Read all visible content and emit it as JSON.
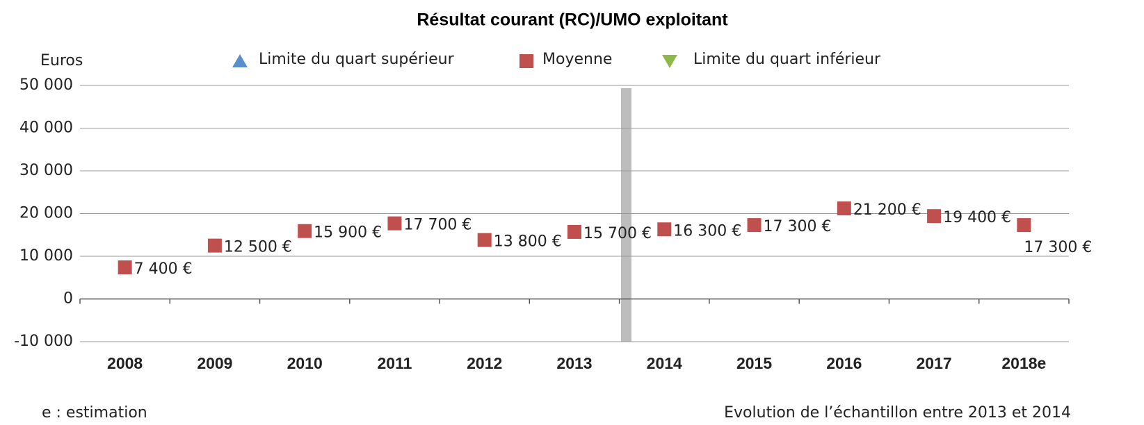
{
  "chart_data": {
    "type": "scatter",
    "title": "Résultat courant (RC)/UMO exploitant",
    "y_label": "Euros",
    "categories": [
      "2008",
      "2009",
      "2010",
      "2011",
      "2012",
      "2013",
      "2014",
      "2015",
      "2016",
      "2017",
      "2018e"
    ],
    "series": [
      {
        "name": "Limite du quart supérieur",
        "color": "#5b8fc9",
        "marker": "triangle-up",
        "values": [
          null,
          null,
          null,
          null,
          null,
          null,
          null,
          null,
          null,
          null,
          null
        ]
      },
      {
        "name": "Moyenne",
        "color": "#c0504d",
        "marker": "square",
        "values": [
          7400,
          12500,
          15900,
          17700,
          13800,
          15700,
          16300,
          17300,
          21200,
          19400,
          17300
        ],
        "value_labels": [
          "7 400 €",
          "12 500 €",
          "15 900 €",
          "17 700 €",
          "13 800 €",
          "15 700 €",
          "16 300 €",
          "17 300 €",
          "21 200 €",
          "19 400 €",
          "17 300 €"
        ]
      },
      {
        "name": "Limite du quart inférieur",
        "color": "#8db84a",
        "marker": "triangle-down",
        "values": [
          null,
          null,
          null,
          null,
          null,
          null,
          null,
          null,
          null,
          null,
          null
        ]
      }
    ],
    "ylim": [
      -10000,
      50000
    ],
    "yticks": [
      {
        "value": -10000,
        "label": "-10 000"
      },
      0,
      {
        "value": 10000,
        "label": "10 000"
      },
      {
        "value": 20000,
        "label": "20 000"
      },
      {
        "value": 30000,
        "label": "30 000"
      },
      {
        "value": 40000,
        "label": "40 000"
      },
      {
        "value": 50000,
        "label": "50 000"
      }
    ],
    "grid": true,
    "notes": [
      "e : estimation",
      "Evolution de l’échantillon entre 2013 et 2014"
    ]
  }
}
